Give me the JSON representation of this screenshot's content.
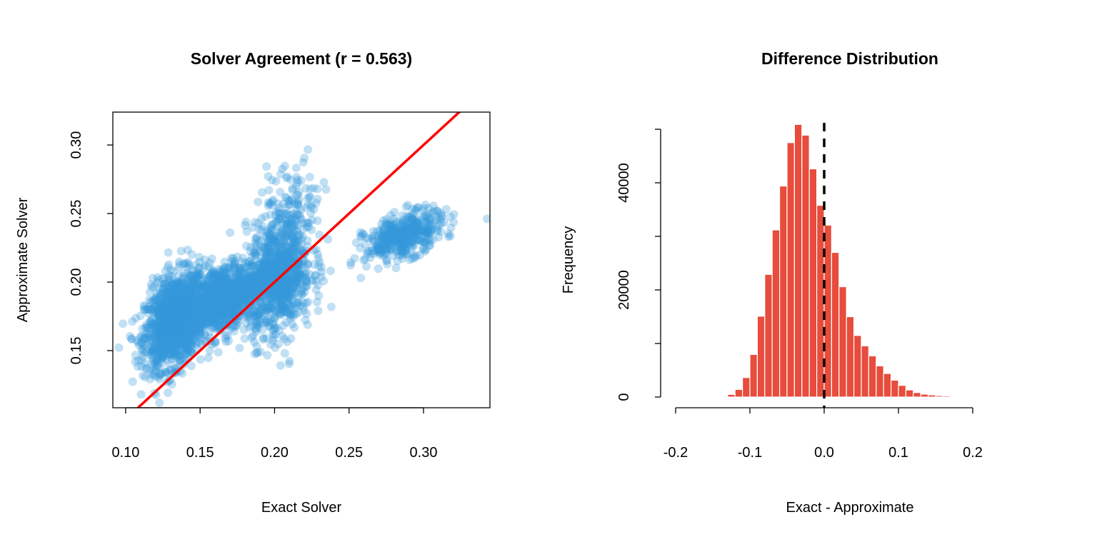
{
  "chart_data": [
    {
      "type": "scatter",
      "title": "Solver Agreement (r = 0.563)",
      "xlabel": "Exact Solver",
      "ylabel": "Approximate Solver",
      "xlim": [
        0.0914,
        0.3446
      ],
      "ylim": [
        0.1083,
        0.324
      ],
      "xticks": [
        0.1,
        0.15,
        0.2,
        0.25,
        0.3
      ],
      "xtick_labels": [
        "0.10",
        "0.15",
        "0.20",
        "0.25",
        "0.30"
      ],
      "yticks": [
        0.15,
        0.2,
        0.25,
        0.3
      ],
      "ytick_labels": [
        "0.15",
        "0.20",
        "0.25",
        "0.30"
      ],
      "grid": false,
      "point_color": "#3498db",
      "point_alpha": 0.3,
      "reference_line": {
        "label": "y = x",
        "slope": 1,
        "intercept": 0,
        "color": "#ff0000"
      },
      "clusters": [
        {
          "cx": 0.133,
          "cy": 0.172,
          "sx": 0.01,
          "sy": 0.017,
          "rho": 0.35,
          "n": 1400
        },
        {
          "cx": 0.165,
          "cy": 0.188,
          "sx": 0.014,
          "sy": 0.014,
          "rho": 0.4,
          "n": 900
        },
        {
          "cx": 0.203,
          "cy": 0.205,
          "sx": 0.011,
          "sy": 0.022,
          "rho": 0.2,
          "n": 900
        },
        {
          "cx": 0.212,
          "cy": 0.255,
          "sx": 0.01,
          "sy": 0.017,
          "rho": 0.1,
          "n": 90
        },
        {
          "cx": 0.287,
          "cy": 0.234,
          "sx": 0.013,
          "sy": 0.009,
          "rho": 0.5,
          "n": 450
        }
      ]
    },
    {
      "type": "bar",
      "subtype": "histogram",
      "title": "Difference Distribution",
      "xlabel": "Exact - Approximate",
      "ylabel": "Frequency",
      "bin_width": 0.01,
      "bin_start": -0.14,
      "values": [
        100,
        490,
        1420,
        3640,
        7950,
        15100,
        22900,
        31200,
        39400,
        47500,
        50900,
        48900,
        42600,
        35800,
        32100,
        27000,
        20600,
        15000,
        11500,
        9550,
        7680,
        5820,
        4400,
        3150,
        2180,
        1330,
        840,
        530,
        400,
        270,
        220,
        150,
        90
      ],
      "xlim": [
        -0.2,
        0.2
      ],
      "ylim": [
        0,
        50000
      ],
      "xticks": [
        -0.2,
        -0.1,
        0.0,
        0.1,
        0.2
      ],
      "xtick_labels": [
        "-0.2",
        "-0.1",
        "0.0",
        "0.1",
        "0.2"
      ],
      "yticks": [
        0,
        10000,
        20000,
        30000,
        40000,
        50000
      ],
      "ytick_labels": [
        "0",
        "20000",
        "40000"
      ],
      "ytick_label_values": [
        0,
        20000,
        40000
      ],
      "bar_color": "#e74c3c",
      "vline": {
        "x": 0.0,
        "style": "dashed",
        "color": "#000000"
      }
    }
  ]
}
